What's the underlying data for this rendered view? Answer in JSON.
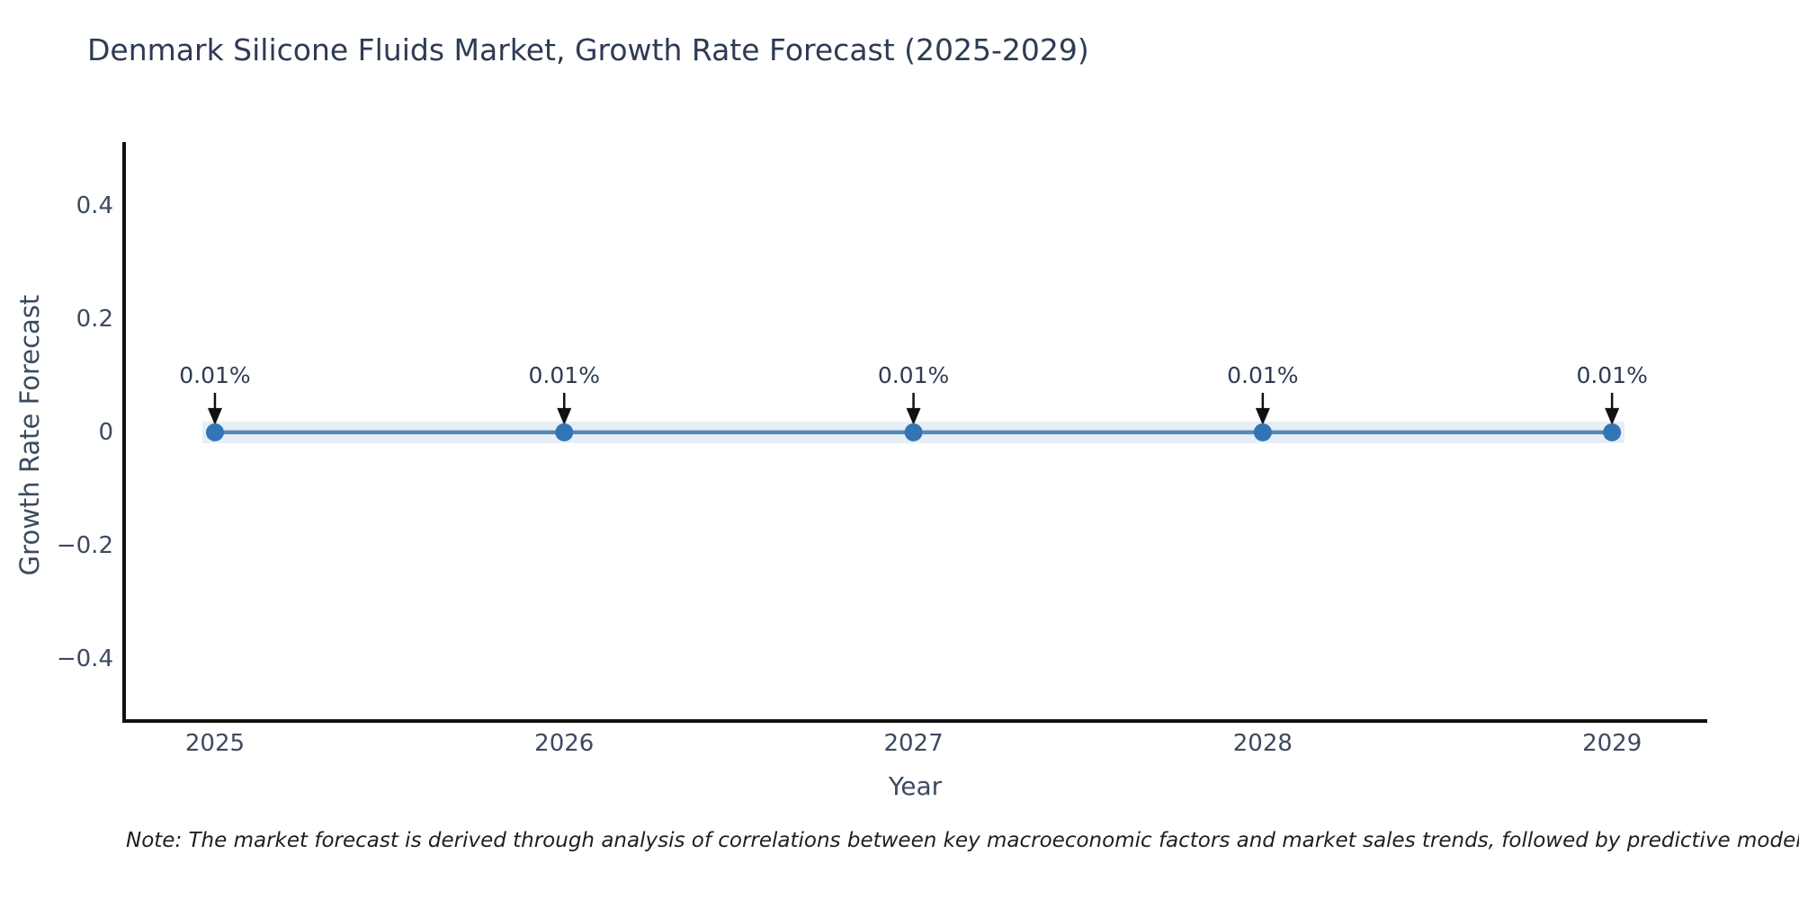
{
  "title": "Denmark Silicone Fluids Market, Growth Rate Forecast (2025-2029)",
  "note": "Note: The market forecast is derived through analysis of correlations between key macroeconomic factors and market sales trends, followed by predictive modeling to project future sa",
  "colors": {
    "background": "#ffffff",
    "title_text": "#2e3b54",
    "tick_text": "#3d4a5f",
    "axis_line": "#111111",
    "note_text": "#1f1f1f"
  },
  "chart_data": {
    "type": "line",
    "title": "Denmark Silicone Fluids Market, Growth Rate Forecast (2025-2029)",
    "xlabel": "Year",
    "ylabel": "Growth Rate Forecast",
    "x": [
      2025,
      2026,
      2027,
      2028,
      2029
    ],
    "series": [
      {
        "name": "Growth Rate Forecast",
        "values": [
          0.0001,
          0.0001,
          0.0001,
          0.0001,
          0.0001
        ],
        "point_labels": [
          "0.01%",
          "0.01%",
          "0.01%",
          "0.01%",
          "0.01%"
        ]
      }
    ],
    "xtick_labels": [
      "2025",
      "2026",
      "2027",
      "2028",
      "2029"
    ],
    "ytick_values": [
      0.4,
      0.2,
      0,
      -0.2,
      -0.4
    ],
    "ytick_labels": [
      "0.4",
      "0.2",
      "0",
      "−0.2",
      "−0.4"
    ],
    "xlim": [
      2024.74,
      2029.27
    ],
    "ylim": [
      -0.51,
      0.51
    ],
    "grid": false,
    "legend": false,
    "line_color": "#5688bb",
    "marker_color": "#3375b4",
    "band_color": "rgba(140,180,215,0.22)",
    "arrow_color": "#111111"
  }
}
